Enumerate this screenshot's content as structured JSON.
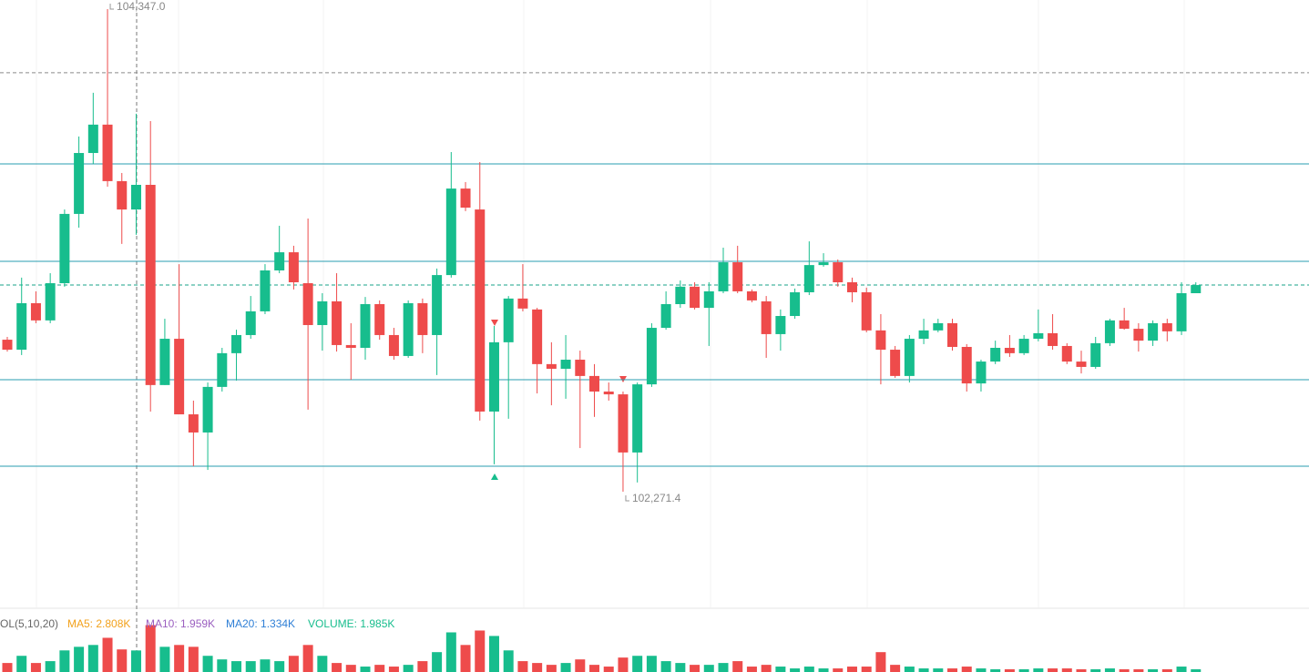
{
  "chart_data": [
    {
      "type": "candlestick",
      "up_color": "#17bd8d",
      "down_color": "#ee4b4b",
      "ylim": [
        101770,
        104386
      ],
      "open": [
        102925,
        102882,
        103082,
        103008,
        103168,
        103466,
        103728,
        103850,
        103607,
        103485,
        103591,
        102730,
        102929,
        102604,
        102526,
        102722,
        102867,
        102945,
        103047,
        103223,
        103301,
        103168,
        102988,
        103090,
        102902,
        102890,
        103078,
        102945,
        102855,
        103082,
        102945,
        103203,
        103575,
        103485,
        102616,
        102914,
        103102,
        103055,
        102820,
        102800,
        102839,
        102769,
        102702,
        102690,
        102440,
        102733,
        102976,
        103078,
        103153,
        103062,
        103133,
        103258,
        103133,
        103090,
        102949,
        103027,
        103129,
        103246,
        103258,
        103172,
        103129,
        102965,
        102882,
        102769,
        102929,
        102965,
        102996,
        102894,
        102737,
        102831,
        102890,
        102867,
        102929,
        102953,
        102898,
        102831,
        102808,
        102910,
        103008,
        102972,
        102921,
        102996,
        102961,
        103125
      ],
      "high": [
        102937,
        103192,
        103133,
        103211,
        103485,
        103799,
        103987,
        104347.0,
        103642,
        103897,
        103865,
        103015,
        103250,
        102663,
        102741,
        102890,
        102968,
        103113,
        103250,
        103415,
        103329,
        103446,
        103125,
        103211,
        102996,
        103109,
        103094,
        102976,
        103094,
        103102,
        103231,
        103732,
        103603,
        103689,
        102984,
        103113,
        103250,
        103062,
        102914,
        102945,
        102878,
        102820,
        102741,
        102702,
        102741,
        102996,
        103133,
        103180,
        103172,
        103172,
        103321,
        103329,
        103141,
        103113,
        103055,
        103145,
        103348,
        103297,
        103270,
        103192,
        103149,
        103035,
        102898,
        102945,
        103015,
        103015,
        103015,
        102906,
        102839,
        102921,
        102945,
        102945,
        103055,
        103035,
        102910,
        102878,
        102937,
        103015,
        103062,
        102996,
        103008,
        103015,
        103172,
        103172
      ],
      "low": [
        102874,
        102859,
        102996,
        102996,
        103153,
        103407,
        103681,
        103583,
        103337,
        103376,
        102616,
        102730,
        102604,
        102381,
        102365,
        102702,
        102749,
        102929,
        103035,
        103211,
        103141,
        102624,
        102878,
        102874,
        102753,
        102839,
        102925,
        102839,
        102847,
        102867,
        102773,
        103192,
        103478,
        102577,
        102389,
        102585,
        103047,
        102694,
        102643,
        102671,
        102459,
        102593,
        102663,
        102271.4,
        102311,
        102722,
        102968,
        103062,
        103055,
        102898,
        103125,
        103125,
        103086,
        102847,
        102878,
        103015,
        103117,
        103239,
        103153,
        103086,
        102957,
        102733,
        102761,
        102741,
        102906,
        102957,
        102878,
        102702,
        102702,
        102820,
        102851,
        102859,
        102918,
        102882,
        102820,
        102780,
        102800,
        102898,
        102968,
        102874,
        102898,
        102918,
        102945,
        103125
      ],
      "close": [
        102882,
        103082,
        103008,
        103168,
        103466,
        103728,
        103850,
        103607,
        103485,
        103591,
        102730,
        102929,
        102604,
        102526,
        102722,
        102867,
        102945,
        103047,
        103223,
        103301,
        103172,
        102988,
        103090,
        102902,
        102890,
        103078,
        102945,
        102855,
        103082,
        102945,
        103203,
        103575,
        103493,
        102616,
        102914,
        103102,
        103059,
        102820,
        102800,
        102839,
        102769,
        102702,
        102690,
        102440,
        102733,
        102976,
        103078,
        103153,
        103062,
        103133,
        103258,
        103133,
        103094,
        102949,
        103027,
        103129,
        103246,
        103258,
        103172,
        103129,
        102965,
        102882,
        102769,
        102929,
        102965,
        102996,
        102894,
        102737,
        102831,
        102890,
        102867,
        102929,
        102953,
        102898,
        102831,
        102808,
        102910,
        103008,
        102972,
        102921,
        102996,
        102961,
        103125,
        103160
      ],
      "annotations": [
        {
          "value": 104347.0,
          "label": "104,347.0"
        },
        {
          "value": 102271.4,
          "label": "102,271.4"
        }
      ],
      "levels": [
        {
          "value": 104073,
          "color": "#8a8a8a",
          "dashed": true
        },
        {
          "value": 103681,
          "color": "#2a9db0",
          "dashed": false
        },
        {
          "value": 103262,
          "color": "#2a9db0",
          "dashed": false
        },
        {
          "value": 103160,
          "color": "#18a388",
          "dashed": true
        },
        {
          "value": 102753,
          "color": "#2a9db0",
          "dashed": false
        },
        {
          "value": 102381,
          "color": "#2a9db0",
          "dashed": false
        }
      ]
    },
    {
      "type": "volume",
      "ylim": [
        0,
        5.2
      ],
      "legend": [
        {
          "text": "VOL(5,10,20)",
          "color": "#666666"
        },
        {
          "text": "MA5: 2.808K",
          "color": "#f2a11b"
        },
        {
          "text": "MA10: 1.959K",
          "color": "#9b5fc0"
        },
        {
          "text": "MA20: 1.334K",
          "color": "#2f7fd6"
        },
        {
          "text": "VOLUME: 1.985K",
          "color": "#17bd8d"
        }
      ],
      "values": [
        0.83,
        1.49,
        0.83,
        1.0,
        1.99,
        2.32,
        2.49,
        3.15,
        2.08,
        1.985,
        4.32,
        2.32,
        2.49,
        2.32,
        1.49,
        1.16,
        1.0,
        1.0,
        1.16,
        1.0,
        1.49,
        2.49,
        1.49,
        0.83,
        0.66,
        0.5,
        0.66,
        0.5,
        0.66,
        1.0,
        1.83,
        3.65,
        2.49,
        3.82,
        3.32,
        1.99,
        1.0,
        0.83,
        0.66,
        0.83,
        1.16,
        0.66,
        0.5,
        1.33,
        1.49,
        1.49,
        1.0,
        0.83,
        0.66,
        0.66,
        0.83,
        1.0,
        0.5,
        0.66,
        0.5,
        0.33,
        0.5,
        0.33,
        0.33,
        0.5,
        0.5,
        1.83,
        0.66,
        0.5,
        0.33,
        0.33,
        0.33,
        0.5,
        0.33,
        0.25,
        0.25,
        0.25,
        0.33,
        0.33,
        0.33,
        0.25,
        0.25,
        0.33,
        0.25,
        0.25,
        0.25,
        0.25,
        0.5,
        0.25
      ]
    }
  ]
}
